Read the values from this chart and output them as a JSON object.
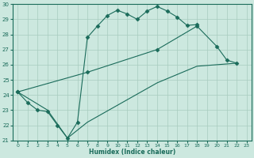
{
  "xlabel": "Humidex (Indice chaleur)",
  "bg_color": "#cce8df",
  "line_color": "#1a6b5a",
  "grid_color": "#a8ccbf",
  "xlim": [
    -0.5,
    23.5
  ],
  "ylim": [
    21,
    30
  ],
  "xticks": [
    0,
    1,
    2,
    3,
    4,
    5,
    6,
    7,
    8,
    9,
    10,
    11,
    12,
    13,
    14,
    15,
    16,
    17,
    18,
    19,
    20,
    21,
    22,
    23
  ],
  "yticks": [
    21,
    22,
    23,
    24,
    25,
    26,
    27,
    28,
    29,
    30
  ],
  "series": [
    {
      "x": [
        0,
        1,
        2,
        3,
        4,
        5,
        6,
        7,
        8,
        9,
        10,
        11,
        12,
        13,
        14,
        15,
        16,
        17,
        18
      ],
      "y": [
        24.2,
        23.5,
        23.0,
        22.9,
        22.0,
        21.15,
        22.2,
        27.8,
        28.55,
        29.25,
        29.6,
        29.35,
        29.0,
        29.55,
        29.85,
        29.55,
        29.15,
        28.6,
        28.65
      ],
      "marker": "D",
      "ms": 2.5
    },
    {
      "x": [
        0,
        7,
        14,
        18,
        20,
        21,
        22
      ],
      "y": [
        24.2,
        25.5,
        27.0,
        28.55,
        27.2,
        26.3,
        26.1
      ],
      "marker": "D",
      "ms": 2.5
    },
    {
      "x": [
        0,
        3,
        5,
        7,
        14,
        18,
        22
      ],
      "y": [
        24.2,
        23.0,
        21.15,
        22.2,
        24.8,
        25.9,
        26.1
      ],
      "marker": null,
      "ms": 0
    }
  ]
}
